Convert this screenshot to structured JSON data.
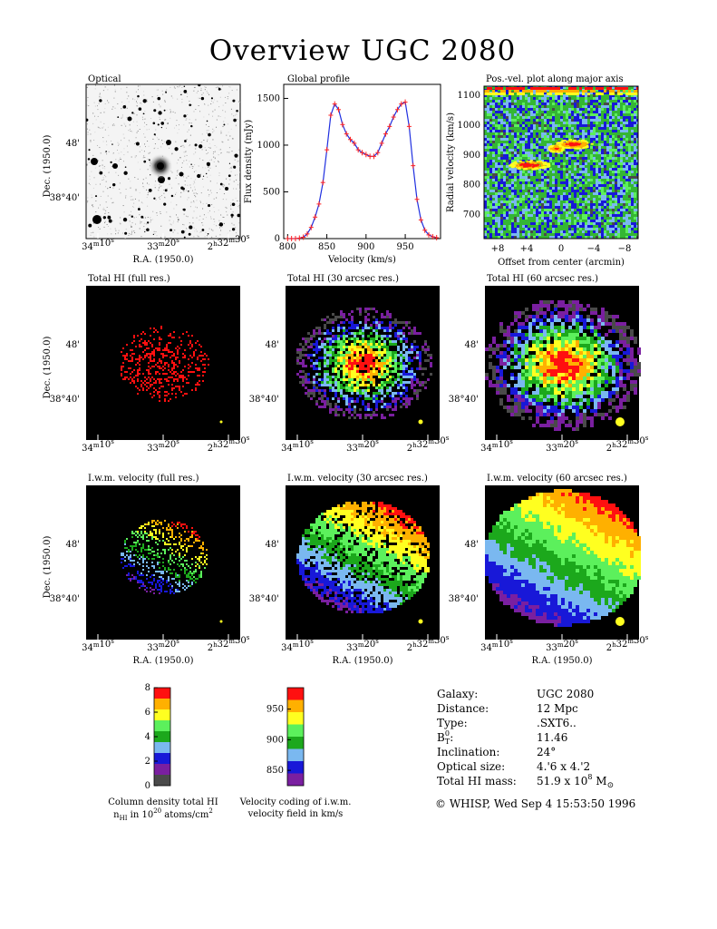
{
  "title": "Overview UGC 2080",
  "maps": {
    "ra_ticks": [
      "34m10s",
      "33m20s",
      "2h32m30s"
    ],
    "dec_ticks": [
      "48'",
      "38°40'"
    ],
    "ra_label": "R.A. (1950.0)",
    "dec_label": "Dec. (1950.0)",
    "row1": {
      "optical": "Optical"
    },
    "row2": [
      "Total HI (full res.)",
      "Total HI (30 arcsec res.)",
      "Total HI (60 arcsec res.)"
    ],
    "row3": [
      "I.w.m. velocity (full res.)",
      "I.w.m. velocity (30 arcsec res.)",
      "I.w.m. velocity (60 arcsec res.)"
    ]
  },
  "chart_data": [
    {
      "type": "line",
      "title": "Global profile",
      "xlabel": "Velocity (km/s)",
      "ylabel": "Flux density (mJy)",
      "xlim": [
        795,
        995
      ],
      "ylim": [
        0,
        1650
      ],
      "xticks": [
        800,
        850,
        900,
        950
      ],
      "yticks": [
        0,
        500,
        1000,
        1500
      ],
      "series": [
        {
          "color": "#1f2fe0",
          "marker_color": "#ff2020",
          "x": [
            800,
            805,
            810,
            815,
            820,
            825,
            830,
            835,
            840,
            845,
            850,
            855,
            860,
            865,
            870,
            875,
            880,
            885,
            890,
            895,
            900,
            905,
            910,
            915,
            920,
            925,
            930,
            935,
            940,
            945,
            950,
            955,
            960,
            965,
            970,
            975,
            980,
            985,
            990
          ],
          "y": [
            0,
            0,
            0,
            5,
            15,
            50,
            120,
            230,
            370,
            600,
            950,
            1320,
            1440,
            1380,
            1220,
            1120,
            1060,
            1020,
            950,
            920,
            900,
            880,
            880,
            920,
            1020,
            1120,
            1200,
            1300,
            1380,
            1440,
            1460,
            1200,
            780,
            420,
            200,
            90,
            40,
            20,
            10
          ]
        }
      ]
    },
    {
      "type": "heatmap",
      "title": "Pos.-vel. plot along major axis",
      "xlabel": "Offset from center (arcmin)",
      "ylabel": "Radial velocity (km/s)",
      "xticks": [
        "+8",
        "+4",
        "0",
        "−4",
        "−8"
      ],
      "yticks": [
        700,
        800,
        900,
        1000,
        1100
      ],
      "ylim": [
        620,
        1130
      ]
    },
    {
      "type": "heatmap",
      "title": "Column density total HI",
      "caption_line1": "Column density total HI",
      "caption_line2": "n",
      "caption_sub": "HI",
      "caption_rest": " in 10",
      "caption_exp": "20",
      "caption_unit": " atoms/cm",
      "caption_unit_exp": "2",
      "ticks": [
        0,
        2,
        4,
        6,
        8
      ],
      "colors": [
        "#4a4a4a",
        "#7a1fa0",
        "#1818d8",
        "#7ab8f0",
        "#1ca81c",
        "#5cf05c",
        "#ffff20",
        "#ffb000",
        "#ff1010"
      ]
    },
    {
      "type": "heatmap",
      "title": "Velocity coding of i.w.m. velocity field in km/s",
      "caption_line1": "Velocity coding of i.w.m.",
      "caption_line2": "velocity field in km/s",
      "ticks": [
        850,
        900,
        950
      ],
      "colors": [
        "#7a1fa0",
        "#1818d8",
        "#7ab8f0",
        "#1ca81c",
        "#5cf05c",
        "#ffff20",
        "#ffb000",
        "#ff1010"
      ]
    }
  ],
  "info": {
    "rows": [
      {
        "label": "Galaxy:",
        "value": "UGC 2080"
      },
      {
        "label": "Distance:",
        "value": "12 Mpc"
      },
      {
        "label": "Type:",
        "value": ".SXT6.."
      },
      {
        "label": "B",
        "label_sup": "0",
        "label_sub": "T",
        "label_rest": ":",
        "value": "11.46"
      },
      {
        "label": "Inclination:",
        "value": "24°"
      },
      {
        "label": "Optical size:",
        "value": "4.'6 x 4.'2"
      },
      {
        "label": "Total HI mass:",
        "value": "51.9 x 10",
        "value_sup": "8",
        "value_rest": " M",
        "value_sub": "⊙"
      }
    ],
    "footer": "© WHISP, Wed Sep  4 15:53:50 1996"
  }
}
